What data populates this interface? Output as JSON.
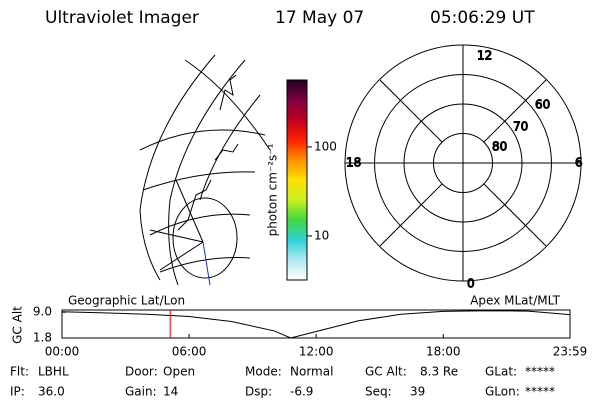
{
  "header": {
    "instrument": "Ultraviolet Imager",
    "date": "17 May 07",
    "time": "05:06:29 UT"
  },
  "colorbar": {
    "label": "photon cm⁻²s⁻¹",
    "log": true,
    "range": [
      3.2,
      565
    ],
    "ticks": [
      10,
      100
    ],
    "colors": [
      "#ffffff",
      "#b0e8f0",
      "#30d0d8",
      "#40d840",
      "#c8f020",
      "#ffe000",
      "#ff9000",
      "#ff2000",
      "#c00020",
      "#800040",
      "#200020"
    ]
  },
  "polar_dial": {
    "mlt_labels": [
      "12",
      "18",
      "6",
      "0"
    ],
    "lat_labels": [
      "60",
      "70",
      "80"
    ]
  },
  "chart_data": {
    "type": "line",
    "y_label": "GC Alt",
    "left_title": "Geographic Lat/Lon",
    "right_title": "Apex MLat/MLT",
    "x": [
      0,
      2,
      4,
      6,
      8,
      10,
      10.8,
      12,
      14,
      16,
      18,
      20,
      22,
      23.98
    ],
    "values": [
      9.1,
      8.8,
      8.4,
      7.8,
      6.4,
      3.8,
      1.8,
      3.6,
      6.6,
      8.4,
      9.2,
      9.4,
      9.3,
      8.3
    ],
    "color": "#000000",
    "marker_x": 5.108,
    "marker_color": "#e00000",
    "xlim": [
      0,
      23.983
    ],
    "ylim": [
      1.8,
      9.6
    ],
    "yticks": [
      1.8,
      {
        "value": 9.0,
        "label": "9.0"
      }
    ],
    "xticks": [
      {
        "value": 0,
        "label": "00:00"
      },
      {
        "value": 6,
        "label": "06:00"
      },
      {
        "value": 12,
        "label": "12:00"
      },
      {
        "value": 18,
        "label": "18:00"
      },
      {
        "value": 23.983,
        "label": "23:59"
      }
    ]
  },
  "status": {
    "rows": [
      [
        [
          "Flt:",
          "LBHL"
        ],
        [
          "Door:",
          "Open"
        ],
        [
          "Mode:",
          "Normal"
        ],
        [
          "GC Alt:",
          "8.3 Re"
        ],
        [
          "GLat:",
          "*****"
        ]
      ],
      [
        [
          "IP:",
          "36.0"
        ],
        [
          "Gain:",
          "14"
        ],
        [
          "Dsp:",
          "-6.9"
        ],
        [
          "Seq:",
          "39"
        ],
        [
          "GLon:",
          "*****"
        ]
      ]
    ]
  }
}
